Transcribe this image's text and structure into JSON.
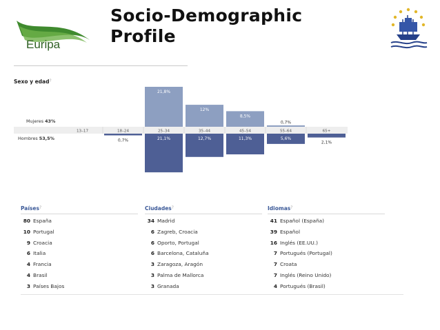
{
  "header": {
    "title_line1": "Socio-Demographic",
    "title_line2": "Profile",
    "logo_text": "Euripa"
  },
  "section_label": "Sexo y edad",
  "help_mark": "?",
  "colors": {
    "women_bar": "#8d9fc1",
    "men_bar": "#4e5f95",
    "axis_band": "#eeeeee",
    "title_blue": "#3b5998"
  },
  "chart_data": {
    "type": "bar",
    "categories": [
      "13–17",
      "18–24",
      "25–34",
      "35–44",
      "45–54",
      "55–64",
      "65+"
    ],
    "series": [
      {
        "name": "Mujeres",
        "total_label": "43%",
        "values": [
          0,
          0,
          21.8,
          12,
          8.5,
          0.7,
          0
        ],
        "labels": [
          "",
          "",
          "21,8%",
          "12%",
          "8,5%",
          "0,7%",
          ""
        ]
      },
      {
        "name": "Hombres",
        "total_label": "53,5%",
        "values": [
          0,
          0.7,
          21.1,
          12.7,
          11.3,
          5.6,
          2.1
        ],
        "labels": [
          "",
          "0,7%",
          "21,1%",
          "12,7%",
          "11,3%",
          "5,6%",
          "2,1%"
        ]
      }
    ],
    "ylim": [
      0,
      22
    ]
  },
  "lists": {
    "paises": {
      "title": "Países",
      "rows": [
        {
          "count": "80",
          "name": "España"
        },
        {
          "count": "10",
          "name": "Portugal"
        },
        {
          "count": "9",
          "name": "Croacia"
        },
        {
          "count": "6",
          "name": "Italia"
        },
        {
          "count": "4",
          "name": "Francia"
        },
        {
          "count": "4",
          "name": "Brasil"
        },
        {
          "count": "3",
          "name": "Países Bajos"
        }
      ]
    },
    "ciudades": {
      "title": "Ciudades",
      "rows": [
        {
          "count": "34",
          "name": "Madrid"
        },
        {
          "count": "6",
          "name": "Zagreb, Croacia"
        },
        {
          "count": "6",
          "name": "Oporto, Portugal"
        },
        {
          "count": "6",
          "name": "Barcelona, Cataluña"
        },
        {
          "count": "3",
          "name": "Zaragoza, Aragón"
        },
        {
          "count": "3",
          "name": "Palma de Mallorca"
        },
        {
          "count": "3",
          "name": "Granada"
        }
      ]
    },
    "idiomas": {
      "title": "Idiomas",
      "rows": [
        {
          "count": "41",
          "name": "Español (España)"
        },
        {
          "count": "39",
          "name": "Español"
        },
        {
          "count": "16",
          "name": "Inglés (EE.UU.)"
        },
        {
          "count": "7",
          "name": "Portugués (Portugal)"
        },
        {
          "count": "7",
          "name": "Croata"
        },
        {
          "count": "7",
          "name": "Inglés (Reino Unido)"
        },
        {
          "count": "4",
          "name": "Portugués (Brasil)"
        }
      ]
    }
  }
}
